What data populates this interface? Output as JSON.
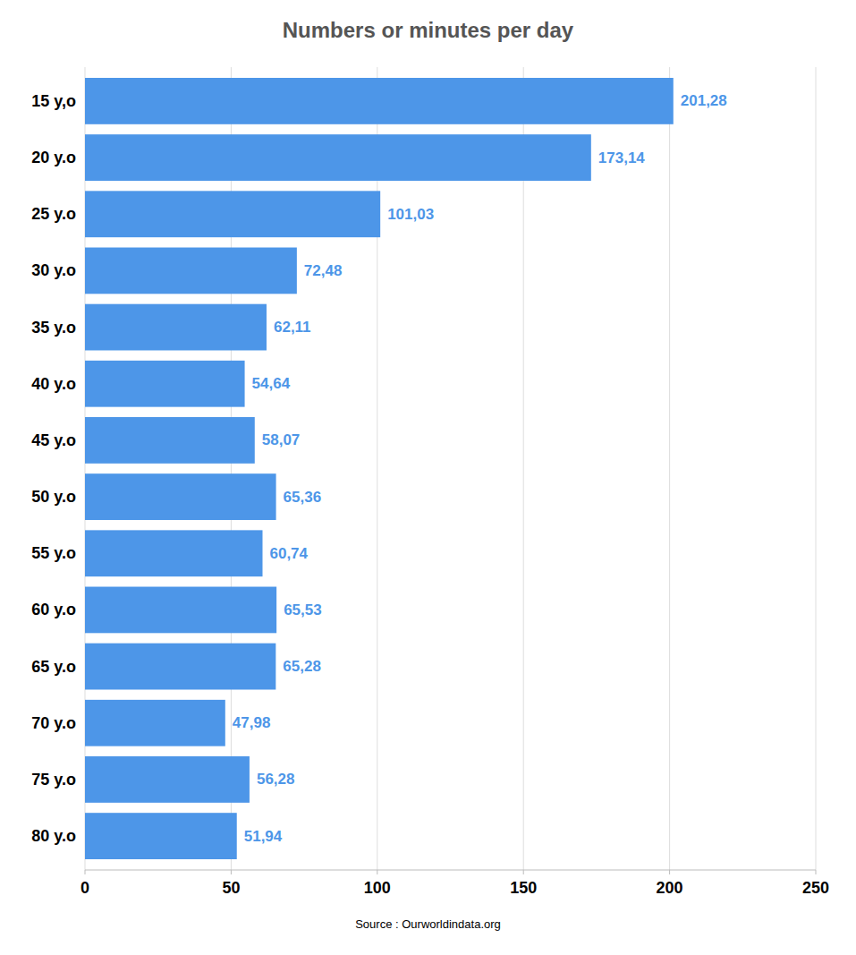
{
  "chart_data": {
    "type": "bar",
    "orientation": "horizontal",
    "title": "Numbers or minutes per day",
    "categories": [
      "15 y,o",
      "20 y.o",
      "25 y.o",
      "30 y.o",
      "35 y.o",
      "40 y.o",
      "45 y.o",
      "50 y.o",
      "55 y.o",
      "60 y.o",
      "65 y.o",
      "70 y.o",
      "75 y.o",
      "80 y.o"
    ],
    "values": [
      201.28,
      173.14,
      101.03,
      72.48,
      62.11,
      54.64,
      58.07,
      65.36,
      60.74,
      65.53,
      65.28,
      47.98,
      56.28,
      51.94
    ],
    "value_labels": [
      "201,28",
      "173,14",
      "101,03",
      "72,48",
      "62,11",
      "54,64",
      "58,07",
      "65,36",
      "60,74",
      "65,53",
      "65,28",
      "47,98",
      "56,28",
      "51,94"
    ],
    "data_labels": true,
    "color": "#4d96e8",
    "xlim": [
      0,
      250
    ],
    "xticks": [
      0,
      50,
      100,
      150,
      200,
      250
    ],
    "grid": true,
    "annotations": [
      "Source : Ourworldindata.org"
    ]
  }
}
